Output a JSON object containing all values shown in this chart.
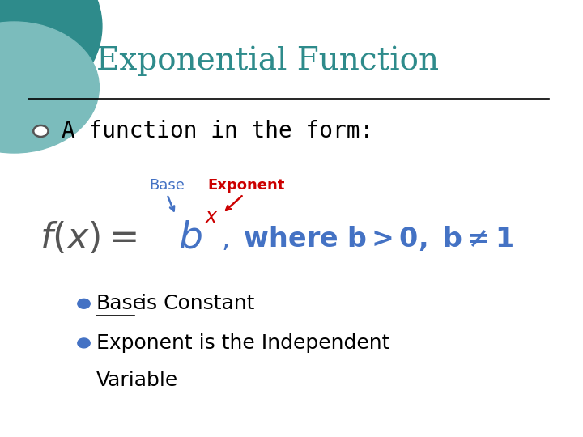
{
  "title": "Exponential Function",
  "title_color": "#2E8B8B",
  "title_fontsize": 28,
  "background_color": "#FFFFFF",
  "bullet_text": "A function in the form:",
  "bullet_fontsize": 20,
  "bullet_color": "#000000",
  "label_base": "Base",
  "label_base_color": "#4472C4",
  "label_exponent": "Exponent",
  "label_exponent_color": "#CC0000",
  "formula_gray_color": "#555555",
  "formula_b_color": "#4472C4",
  "formula_x_color": "#CC0000",
  "bullet1_underline": "Base",
  "bullet1_rest": " is Constant",
  "bullet2_line1": "Exponent is the Independent",
  "bullet2_line2": "Variable",
  "bullet_point_color": "#4472C4",
  "line_color": "#000000",
  "teal_dark": "#2E8B8B",
  "teal_light": "#7BBCBC",
  "open_circle_color": "#555555"
}
